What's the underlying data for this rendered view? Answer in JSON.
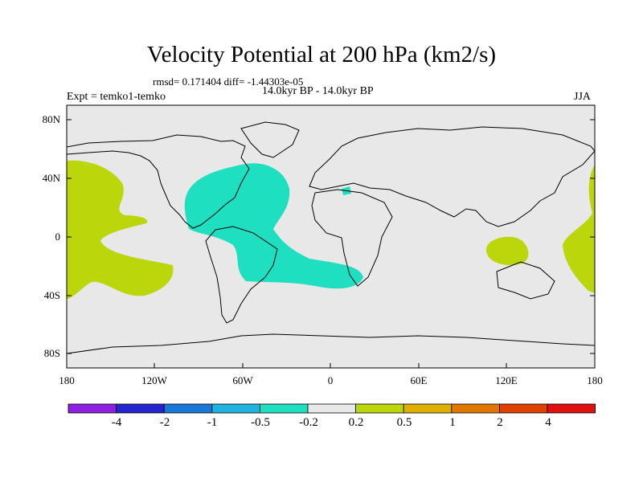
{
  "title": "Velocity Potential at 200 hPa (km2/s)",
  "stats": "rmsd= 0.171404 diff= -1.44303e-05",
  "period": "14.0kyr BP - 14.0kyr BP",
  "experiment": "Expt = temko1-temko",
  "season": "JJA",
  "lat_labels": [
    "80N",
    "40N",
    "0",
    "40S",
    "80S"
  ],
  "lon_labels": [
    "180",
    "120W",
    "60W",
    "0",
    "60E",
    "120E",
    "180"
  ],
  "colorbar": {
    "colors": [
      "#8c1fe0",
      "#2525d0",
      "#1878d8",
      "#1fb4e0",
      "#1ee0c0",
      "#e8e8e8",
      "#bcd60c",
      "#e0b000",
      "#e07800",
      "#e04000",
      "#e01010"
    ],
    "labels": [
      "-4",
      "-2",
      "-1",
      "-0.5",
      "-0.2",
      "0.2",
      "0.5",
      "1",
      "2",
      "4"
    ]
  },
  "colors": {
    "background": "#e8e8e8",
    "negative_fill": "#1ee0c0",
    "positive_fill": "#bcd60c",
    "coast": "#000000"
  }
}
